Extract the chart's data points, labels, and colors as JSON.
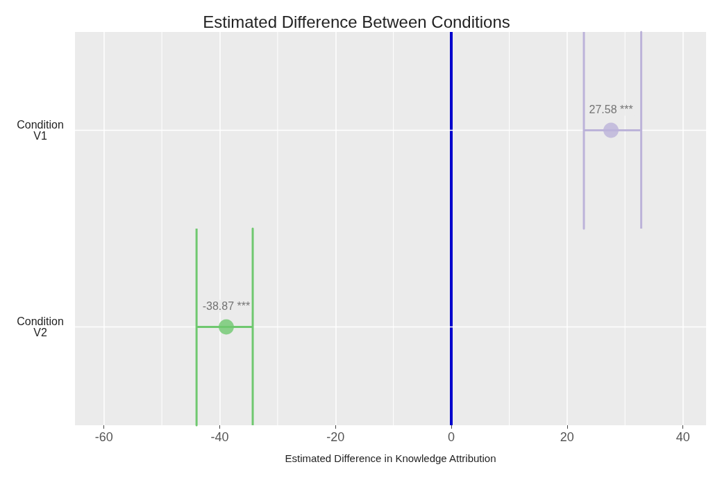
{
  "chart_data": {
    "type": "scatter",
    "orientation": "horizontal",
    "title": "Estimated Difference Between Conditions",
    "xlabel": "Estimated Difference in Knowledge Attribution",
    "categories": [
      "Condition V1",
      "Condition V2"
    ],
    "values": [
      27.58,
      -38.87
    ],
    "errors": [
      [
        22.9,
        32.8
      ],
      [
        -44.0,
        -34.3
      ]
    ],
    "colors": [
      "#bcb3d9",
      "#6fc86f"
    ],
    "value_labels": [
      "27.58 ***",
      "-38.87 ***"
    ],
    "xlim": [
      -65,
      44
    ],
    "xticks": [
      -60,
      -40,
      -20,
      0,
      20,
      40
    ],
    "ref_lines": [
      {
        "axis": "x",
        "value": 0,
        "color": "#0000cc"
      }
    ],
    "grid": true,
    "marker": "circle"
  }
}
